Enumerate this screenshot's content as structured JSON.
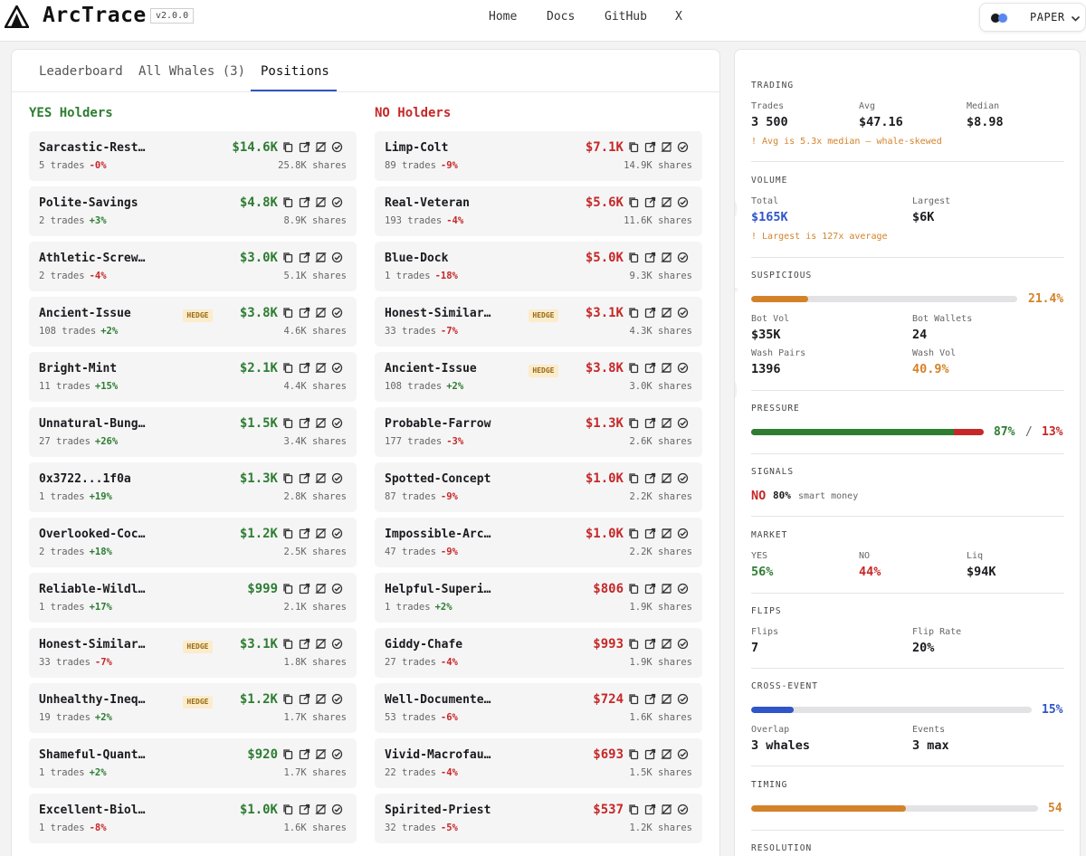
{
  "header": {
    "brand": "ArcTrace",
    "version": "v2.0.0",
    "nav": [
      "Home",
      "Docs",
      "GitHub",
      "X"
    ],
    "mode_label": "PAPER"
  },
  "tabs": [
    {
      "label": "Leaderboard",
      "active": false
    },
    {
      "label": "All Whales (3)",
      "active": false
    },
    {
      "label": "Positions",
      "active": true
    }
  ],
  "yes_holders": {
    "title": "YES Holders",
    "rows": [
      {
        "name": "Sarcastic-Rest…",
        "trades": "5 trades",
        "delta": "-0%",
        "dir": "down",
        "amount": "$14.6K",
        "shares": "25.8K shares",
        "hedge": ""
      },
      {
        "name": "Polite-Savings",
        "trades": "2 trades",
        "delta": "+3%",
        "dir": "up",
        "amount": "$4.8K",
        "shares": "8.9K shares",
        "hedge": ""
      },
      {
        "name": "Athletic-Screw…",
        "trades": "2 trades",
        "delta": "-4%",
        "dir": "down",
        "amount": "$3.0K",
        "shares": "5.1K shares",
        "hedge": ""
      },
      {
        "name": "Ancient-Issue",
        "trades": "108 trades",
        "delta": "+2%",
        "dir": "up",
        "amount": "$3.8K",
        "shares": "4.6K shares",
        "hedge": "HEDGE"
      },
      {
        "name": "Bright-Mint",
        "trades": "11 trades",
        "delta": "+15%",
        "dir": "up",
        "amount": "$2.1K",
        "shares": "4.4K shares",
        "hedge": ""
      },
      {
        "name": "Unnatural-Bung…",
        "trades": "27 trades",
        "delta": "+26%",
        "dir": "up",
        "amount": "$1.5K",
        "shares": "3.4K shares",
        "hedge": ""
      },
      {
        "name": "0x3722...1f0a",
        "trades": "1 trades",
        "delta": "+19%",
        "dir": "up",
        "amount": "$1.3K",
        "shares": "2.8K shares",
        "hedge": ""
      },
      {
        "name": "Overlooked-Coc…",
        "trades": "2 trades",
        "delta": "+18%",
        "dir": "up",
        "amount": "$1.2K",
        "shares": "2.5K shares",
        "hedge": ""
      },
      {
        "name": "Reliable-Wildl…",
        "trades": "1 trades",
        "delta": "+17%",
        "dir": "up",
        "amount": "$999",
        "shares": "2.1K shares",
        "hedge": ""
      },
      {
        "name": "Honest-Similar…",
        "trades": "33 trades",
        "delta": "-7%",
        "dir": "down",
        "amount": "$3.1K",
        "shares": "1.8K shares",
        "hedge": "HEDGE"
      },
      {
        "name": "Unhealthy-Ineq…",
        "trades": "19 trades",
        "delta": "+2%",
        "dir": "up",
        "amount": "$1.2K",
        "shares": "1.7K shares",
        "hedge": "HEDGE"
      },
      {
        "name": "Shameful-Quant…",
        "trades": "1 trades",
        "delta": "+2%",
        "dir": "up",
        "amount": "$920",
        "shares": "1.7K shares",
        "hedge": ""
      },
      {
        "name": "Excellent-Biol…",
        "trades": "1 trades",
        "delta": "-8%",
        "dir": "down",
        "amount": "$1.0K",
        "shares": "1.6K shares",
        "hedge": ""
      }
    ]
  },
  "no_holders": {
    "title": "NO Holders",
    "rows": [
      {
        "name": "Limp-Colt",
        "trades": "89 trades",
        "delta": "-9%",
        "dir": "down",
        "amount": "$7.1K",
        "shares": "14.9K shares",
        "hedge": ""
      },
      {
        "name": "Real-Veteran",
        "trades": "193 trades",
        "delta": "-4%",
        "dir": "down",
        "amount": "$5.6K",
        "shares": "11.6K shares",
        "hedge": ""
      },
      {
        "name": "Blue-Dock",
        "trades": "1 trades",
        "delta": "-18%",
        "dir": "down",
        "amount": "$5.0K",
        "shares": "9.3K shares",
        "hedge": ""
      },
      {
        "name": "Honest-Similar…",
        "trades": "33 trades",
        "delta": "-7%",
        "dir": "down",
        "amount": "$3.1K",
        "shares": "4.3K shares",
        "hedge": "HEDGE"
      },
      {
        "name": "Ancient-Issue",
        "trades": "108 trades",
        "delta": "+2%",
        "dir": "up",
        "amount": "$3.8K",
        "shares": "3.0K shares",
        "hedge": "HEDGE"
      },
      {
        "name": "Probable-Farrow",
        "trades": "177 trades",
        "delta": "-3%",
        "dir": "down",
        "amount": "$1.3K",
        "shares": "2.6K shares",
        "hedge": ""
      },
      {
        "name": "Spotted-Concept",
        "trades": "87 trades",
        "delta": "-9%",
        "dir": "down",
        "amount": "$1.0K",
        "shares": "2.2K shares",
        "hedge": ""
      },
      {
        "name": "Impossible-Arc…",
        "trades": "47 trades",
        "delta": "-9%",
        "dir": "down",
        "amount": "$1.0K",
        "shares": "2.2K shares",
        "hedge": ""
      },
      {
        "name": "Helpful-Superi…",
        "trades": "1 trades",
        "delta": "+2%",
        "dir": "up",
        "amount": "$806",
        "shares": "1.9K shares",
        "hedge": ""
      },
      {
        "name": "Giddy-Chafe",
        "trades": "27 trades",
        "delta": "-4%",
        "dir": "down",
        "amount": "$993",
        "shares": "1.9K shares",
        "hedge": ""
      },
      {
        "name": "Well-Documente…",
        "trades": "53 trades",
        "delta": "-6%",
        "dir": "down",
        "amount": "$724",
        "shares": "1.6K shares",
        "hedge": ""
      },
      {
        "name": "Vivid-Macrofau…",
        "trades": "22 trades",
        "delta": "-4%",
        "dir": "down",
        "amount": "$693",
        "shares": "1.5K shares",
        "hedge": ""
      },
      {
        "name": "Spirited-Priest",
        "trades": "32 trades",
        "delta": "-5%",
        "dir": "down",
        "amount": "$537",
        "shares": "1.2K shares",
        "hedge": ""
      }
    ]
  },
  "row_icons": [
    "copy-icon",
    "external-link-icon",
    "polymarket-icon",
    "verified-icon"
  ],
  "stats": {
    "trading": {
      "title": "TRADING",
      "trades_label": "Trades",
      "trades": "3 500",
      "avg_label": "Avg",
      "avg": "$47.16",
      "median_label": "Median",
      "median": "$8.98",
      "warning": "! Avg is 5.3x median — whale-skewed"
    },
    "volume": {
      "title": "VOLUME",
      "total_label": "Total",
      "total": "$165K",
      "largest_label": "Largest",
      "largest": "$6K",
      "warning": "! Largest is 127x average"
    },
    "suspicious": {
      "title": "SUSPICIOUS",
      "level": 0.214,
      "pct": "21.4%",
      "bot_vol_label": "Bot Vol",
      "bot_vol": "$35K",
      "bot_wallets_label": "Bot Wallets",
      "bot_wallets": "24",
      "wash_pairs_label": "Wash Pairs",
      "wash_pairs": "1396",
      "wash_vol_label": "Wash Vol",
      "wash_vol": "40.9%"
    },
    "pressure": {
      "title": "PRESSURE",
      "yes_level": 0.87,
      "yes_pct": "87%",
      "sep": "/",
      "no_pct": "13%"
    },
    "signals": {
      "title": "SIGNALS",
      "side": "NO",
      "pct": "80%",
      "note": "smart money"
    },
    "market": {
      "title": "MARKET",
      "yes_label": "YES",
      "yes": "56%",
      "no_label": "NO",
      "no": "44%",
      "liq_label": "Liq",
      "liq": "$94K"
    },
    "flips": {
      "title": "FLIPS",
      "flips_label": "Flips",
      "flips": "7",
      "rate_label": "Flip Rate",
      "rate": "20%"
    },
    "cross_event": {
      "title": "CROSS-EVENT",
      "level": 0.15,
      "pct": "15%",
      "overlap_label": "Overlap",
      "overlap": "3 whales",
      "events_label": "Events",
      "events": "3 max"
    },
    "timing": {
      "title": "TIMING",
      "level": 0.54,
      "value": "54"
    },
    "resolution": {
      "title": "RESOLUTION"
    }
  },
  "colors": {
    "yes": "#2e7d32",
    "no": "#c62828",
    "warn": "#d4822a",
    "accent": "#2f55c8"
  }
}
